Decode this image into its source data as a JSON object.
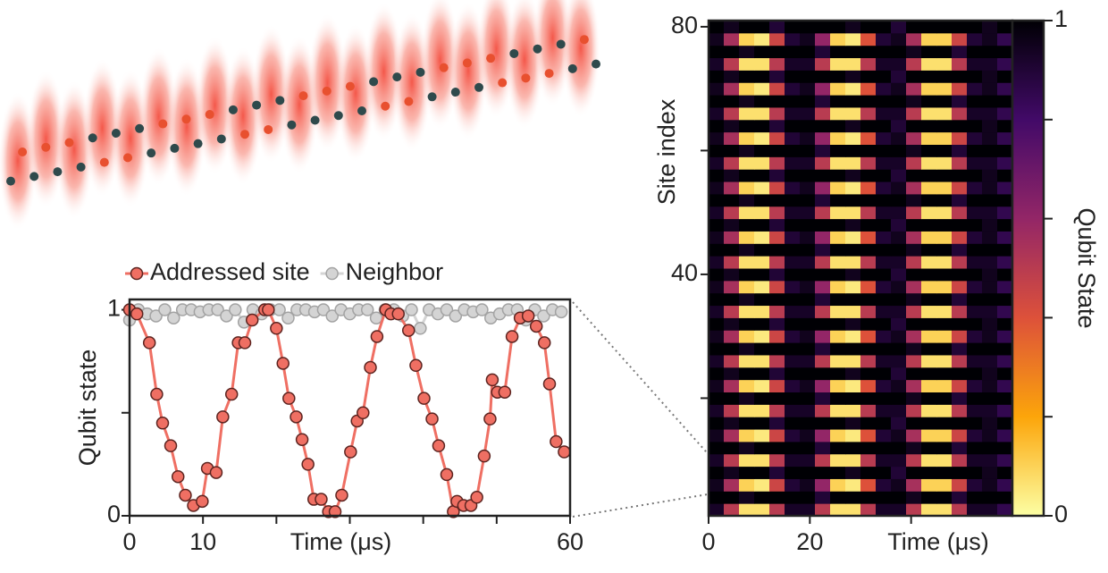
{
  "chart_data": [
    {
      "type": "line",
      "legend": "top",
      "xlabel": "Time (μs)",
      "ylabel": "Qubit state",
      "xlim": [
        0,
        60
      ],
      "ylim": [
        0,
        1.05
      ],
      "xticks": [
        0,
        10,
        60
      ],
      "xminorticks": [
        20,
        30,
        40,
        50
      ],
      "yticks": [
        0,
        1
      ],
      "yminorticks": [
        0.5
      ],
      "series": [
        {
          "name": "Addressed site",
          "color": "#ef6f63",
          "edgecolor": "#5c2420",
          "x": [
            0,
            1,
            2.7,
            3.7,
            4.5,
            5.6,
            6.6,
            7.6,
            8.7,
            9.9,
            10.6,
            11.8,
            12.7,
            13.9,
            14.8,
            15.7,
            16.7,
            18.4,
            18.9,
            20,
            20.9,
            21.7,
            22.7,
            23.5,
            24.3,
            25.1,
            26.1,
            27.1,
            28,
            28.9,
            30.1,
            31,
            31.8,
            32.8,
            33.7,
            34.9,
            35.6,
            36.6,
            38,
            39,
            40.1,
            41.2,
            42.1,
            43.2,
            44.1,
            44.6,
            45.5,
            46.5,
            47.3,
            48.3,
            49.1,
            49.4,
            50.1,
            51.1,
            52.1,
            53.2,
            54.3,
            55.4,
            56.5,
            57.2,
            58.1,
            59.2
          ],
          "values": [
            1,
            0.98,
            0.84,
            0.59,
            0.45,
            0.34,
            0.19,
            0.1,
            0.05,
            0.07,
            0.23,
            0.21,
            0.48,
            0.59,
            0.84,
            0.84,
            0.95,
            1,
            1,
            0.91,
            0.74,
            0.57,
            0.48,
            0.37,
            0.25,
            0.08,
            0.08,
            0.02,
            0.02,
            0.1,
            0.31,
            0.46,
            0.5,
            0.72,
            0.87,
            1,
            0.98,
            0.98,
            0.9,
            0.73,
            0.57,
            0.47,
            0.34,
            0.2,
            0.02,
            0.07,
            0.05,
            0.05,
            0.09,
            0.29,
            0.47,
            0.66,
            0.6,
            0.6,
            0.87,
            0.96,
            0.97,
            0.92,
            0.84,
            0.64,
            0.36,
            0.31
          ]
        },
        {
          "name": "Neighbor",
          "color": "#d4d4d4",
          "edgecolor": "#a3a3a3",
          "x": [
            0,
            1.2,
            2.4,
            3.6,
            4.8,
            6,
            7.2,
            8.4,
            9.6,
            10.8,
            12,
            13.2,
            14.4,
            15.6,
            16.8,
            18,
            19.2,
            20.4,
            21.6,
            22.8,
            24,
            25.2,
            26.4,
            27.6,
            28.8,
            30,
            31.2,
            32.4,
            33.6,
            34.8,
            36,
            37.2,
            38.4,
            39.6,
            40.8,
            42,
            43.2,
            44.4,
            45.6,
            46.8,
            48,
            49.2,
            50.4,
            51.6,
            52.8,
            54,
            55.2,
            56.4,
            57.6,
            58.8
          ],
          "values": [
            0.95,
            1,
            0.98,
            0.97,
            1,
            0.96,
            1,
            1,
            0.99,
            1,
            1,
            0.97,
            1,
            0.94,
            1,
            0.98,
            1,
            1,
            0.96,
            1,
            1,
            0.99,
            1,
            0.97,
            1,
            0.98,
            1,
            1,
            0.96,
            1,
            1,
            0.97,
            1,
            0.91,
            1,
            0.98,
            1,
            0.97,
            1,
            0.99,
            1,
            0.96,
            0.98,
            1,
            1,
            0.95,
            1,
            0.97,
            1,
            0.99
          ]
        }
      ]
    },
    {
      "type": "heatmap",
      "xlabel": "Time (μs)",
      "ylabel": "Site index",
      "xlim": [
        0,
        60
      ],
      "ylim": [
        1,
        81
      ],
      "xticks": [
        0,
        20
      ],
      "xminorticks": [
        40
      ],
      "yticks": [
        40,
        80
      ],
      "yminorticks": [
        20,
        60
      ],
      "colorscale": [
        "#fcffa4",
        "#fca50a",
        "#dd513a",
        "#932667",
        "#420a68",
        "#000004"
      ],
      "colorbar": {
        "label": "Qubit State",
        "lim": [
          0,
          1
        ],
        "ticks": [
          0,
          1
        ],
        "minorticks": [
          0.2,
          0.4,
          0.6,
          0.8
        ]
      },
      "z": [
        [
          0.93,
          0.5,
          0.07,
          0.07,
          0.5,
          0.93,
          0.93,
          0.5,
          0.07,
          0.07,
          0.5,
          0.93,
          0.93,
          0.5,
          0.07,
          0.07,
          0.5,
          0.93,
          0.93,
          0.85
        ],
        [
          1,
          1,
          0.95,
          1,
          1,
          1,
          1,
          0.9,
          1,
          1,
          1,
          1,
          1,
          0.95,
          1,
          1,
          0.9,
          1,
          1,
          1
        ],
        [
          0.95,
          0.55,
          0.1,
          0.05,
          0.45,
          0.9,
          0.95,
          0.6,
          0.1,
          0.05,
          0.4,
          0.9,
          0.95,
          0.55,
          0.1,
          0.1,
          0.45,
          0.9,
          0.95,
          0.85
        ],
        [
          1,
          0.95,
          1,
          1,
          0.9,
          1,
          1,
          1,
          1,
          0.95,
          1,
          1,
          0.9,
          1,
          1,
          1,
          1,
          1,
          0.95,
          1
        ],
        [
          0.93,
          0.5,
          0.07,
          0.07,
          0.5,
          0.93,
          0.93,
          0.5,
          0.07,
          0.07,
          0.5,
          0.93,
          0.93,
          0.5,
          0.07,
          0.07,
          0.5,
          0.93,
          0.93,
          0.85
        ],
        [
          1,
          1,
          0.95,
          1,
          1,
          1,
          1,
          0.9,
          1,
          1,
          1,
          1,
          1,
          0.95,
          1,
          1,
          0.9,
          1,
          1,
          1
        ],
        [
          0.95,
          0.55,
          0.1,
          0.05,
          0.45,
          0.9,
          0.95,
          0.6,
          0.1,
          0.05,
          0.4,
          0.9,
          0.95,
          0.55,
          0.1,
          0.1,
          0.45,
          0.9,
          0.95,
          0.85
        ],
        [
          1,
          0.95,
          1,
          1,
          0.9,
          1,
          1,
          1,
          1,
          0.95,
          1,
          1,
          0.9,
          1,
          1,
          1,
          1,
          1,
          0.95,
          1
        ],
        [
          0.93,
          0.5,
          0.07,
          0.07,
          0.5,
          0.93,
          0.93,
          0.5,
          0.07,
          0.07,
          0.5,
          0.93,
          0.93,
          0.5,
          0.07,
          0.07,
          0.5,
          0.93,
          0.93,
          0.85
        ],
        [
          1,
          1,
          0.95,
          1,
          1,
          1,
          1,
          0.9,
          1,
          1,
          1,
          1,
          1,
          0.95,
          1,
          1,
          0.9,
          1,
          1,
          1
        ],
        [
          0.95,
          0.55,
          0.1,
          0.05,
          0.45,
          0.9,
          0.95,
          0.6,
          0.1,
          0.05,
          0.4,
          0.9,
          0.95,
          0.55,
          0.1,
          0.1,
          0.45,
          0.9,
          0.95,
          0.85
        ],
        [
          1,
          0.95,
          1,
          1,
          0.9,
          1,
          1,
          1,
          1,
          0.95,
          1,
          1,
          0.9,
          1,
          1,
          1,
          1,
          1,
          0.95,
          1
        ],
        [
          0.93,
          0.5,
          0.07,
          0.07,
          0.5,
          0.93,
          0.93,
          0.5,
          0.07,
          0.07,
          0.5,
          0.93,
          0.93,
          0.5,
          0.07,
          0.07,
          0.5,
          0.93,
          0.93,
          0.85
        ],
        [
          1,
          1,
          0.95,
          1,
          1,
          1,
          1,
          0.9,
          1,
          1,
          1,
          1,
          1,
          0.95,
          1,
          1,
          0.9,
          1,
          1,
          1
        ],
        [
          0.95,
          0.55,
          0.1,
          0.05,
          0.45,
          0.9,
          0.95,
          0.6,
          0.1,
          0.05,
          0.4,
          0.9,
          0.95,
          0.55,
          0.1,
          0.1,
          0.45,
          0.9,
          0.95,
          0.85
        ],
        [
          1,
          0.95,
          1,
          1,
          0.9,
          1,
          1,
          1,
          1,
          0.95,
          1,
          1,
          0.9,
          1,
          1,
          1,
          1,
          1,
          0.95,
          1
        ],
        [
          0.93,
          0.5,
          0.07,
          0.07,
          0.5,
          0.93,
          0.93,
          0.5,
          0.07,
          0.07,
          0.5,
          0.93,
          0.93,
          0.5,
          0.07,
          0.07,
          0.5,
          0.93,
          0.93,
          0.85
        ],
        [
          1,
          1,
          0.95,
          1,
          1,
          1,
          1,
          0.9,
          1,
          1,
          1,
          1,
          1,
          0.95,
          1,
          1,
          0.9,
          1,
          1,
          1
        ],
        [
          0.95,
          0.55,
          0.1,
          0.05,
          0.45,
          0.9,
          0.95,
          0.6,
          0.1,
          0.05,
          0.4,
          0.9,
          0.95,
          0.55,
          0.1,
          0.1,
          0.45,
          0.9,
          0.95,
          0.85
        ],
        [
          1,
          0.95,
          1,
          1,
          0.9,
          1,
          1,
          1,
          1,
          0.95,
          1,
          1,
          0.9,
          1,
          1,
          1,
          1,
          1,
          0.95,
          1
        ],
        [
          0.93,
          0.5,
          0.07,
          0.07,
          0.5,
          0.93,
          0.93,
          0.5,
          0.07,
          0.07,
          0.5,
          0.93,
          0.93,
          0.5,
          0.07,
          0.07,
          0.5,
          0.93,
          0.93,
          0.85
        ],
        [
          1,
          1,
          0.95,
          1,
          1,
          1,
          1,
          0.9,
          1,
          1,
          1,
          1,
          1,
          0.95,
          1,
          1,
          0.9,
          1,
          1,
          1
        ],
        [
          0.95,
          0.55,
          0.1,
          0.05,
          0.45,
          0.9,
          0.95,
          0.6,
          0.1,
          0.05,
          0.4,
          0.9,
          0.95,
          0.55,
          0.1,
          0.1,
          0.45,
          0.9,
          0.95,
          0.85
        ],
        [
          1,
          0.95,
          1,
          1,
          0.9,
          1,
          1,
          1,
          1,
          0.95,
          1,
          1,
          0.9,
          1,
          1,
          1,
          1,
          1,
          0.95,
          1
        ],
        [
          0.93,
          0.5,
          0.07,
          0.07,
          0.5,
          0.93,
          0.93,
          0.5,
          0.07,
          0.07,
          0.5,
          0.93,
          0.93,
          0.5,
          0.07,
          0.07,
          0.5,
          0.93,
          0.93,
          0.85
        ],
        [
          1,
          1,
          0.95,
          1,
          1,
          1,
          1,
          0.9,
          1,
          1,
          1,
          1,
          1,
          0.95,
          1,
          1,
          0.9,
          1,
          1,
          1
        ],
        [
          0.95,
          0.55,
          0.1,
          0.05,
          0.45,
          0.9,
          0.95,
          0.6,
          0.1,
          0.05,
          0.4,
          0.9,
          0.95,
          0.55,
          0.1,
          0.1,
          0.45,
          0.9,
          0.95,
          0.85
        ],
        [
          1,
          0.95,
          1,
          1,
          0.9,
          1,
          1,
          1,
          1,
          0.95,
          1,
          1,
          0.9,
          1,
          1,
          1,
          1,
          1,
          0.95,
          1
        ],
        [
          0.93,
          0.5,
          0.07,
          0.07,
          0.5,
          0.93,
          0.93,
          0.5,
          0.07,
          0.07,
          0.5,
          0.93,
          0.93,
          0.5,
          0.07,
          0.07,
          0.5,
          0.93,
          0.93,
          0.85
        ],
        [
          1,
          1,
          0.95,
          1,
          1,
          1,
          1,
          0.9,
          1,
          1,
          1,
          1,
          1,
          0.95,
          1,
          1,
          0.9,
          1,
          1,
          1
        ],
        [
          0.95,
          0.55,
          0.1,
          0.05,
          0.45,
          0.9,
          0.95,
          0.6,
          0.1,
          0.05,
          0.4,
          0.9,
          0.95,
          0.55,
          0.1,
          0.1,
          0.45,
          0.9,
          0.95,
          0.85
        ],
        [
          1,
          0.95,
          1,
          1,
          0.9,
          1,
          1,
          1,
          1,
          0.95,
          1,
          1,
          0.9,
          1,
          1,
          1,
          1,
          1,
          0.95,
          1
        ],
        [
          0.93,
          0.5,
          0.07,
          0.07,
          0.5,
          0.93,
          0.93,
          0.5,
          0.07,
          0.07,
          0.5,
          0.93,
          0.93,
          0.5,
          0.07,
          0.07,
          0.5,
          0.93,
          0.93,
          0.85
        ],
        [
          1,
          1,
          0.95,
          1,
          1,
          1,
          1,
          0.9,
          1,
          1,
          1,
          1,
          1,
          0.95,
          1,
          1,
          0.9,
          1,
          1,
          1
        ],
        [
          0.95,
          0.55,
          0.1,
          0.05,
          0.45,
          0.9,
          0.95,
          0.6,
          0.1,
          0.05,
          0.4,
          0.9,
          0.95,
          0.55,
          0.1,
          0.1,
          0.45,
          0.9,
          0.95,
          0.85
        ],
        [
          1,
          0.95,
          1,
          1,
          0.9,
          1,
          1,
          1,
          1,
          0.95,
          1,
          1,
          0.9,
          1,
          1,
          1,
          1,
          1,
          0.95,
          1
        ],
        [
          0.93,
          0.5,
          0.07,
          0.07,
          0.5,
          0.93,
          0.93,
          0.5,
          0.07,
          0.07,
          0.5,
          0.93,
          0.93,
          0.5,
          0.07,
          0.07,
          0.5,
          0.93,
          0.93,
          0.85
        ],
        [
          1,
          1,
          0.95,
          1,
          1,
          1,
          1,
          0.9,
          1,
          1,
          1,
          1,
          1,
          0.95,
          1,
          1,
          0.9,
          1,
          1,
          1
        ],
        [
          0.95,
          0.55,
          0.1,
          0.05,
          0.45,
          0.9,
          0.95,
          0.6,
          0.1,
          0.05,
          0.4,
          0.9,
          0.95,
          0.55,
          0.1,
          0.1,
          0.45,
          0.9,
          0.95,
          0.85
        ],
        [
          1,
          0.95,
          1,
          1,
          0.9,
          1,
          1,
          1,
          1,
          0.95,
          1,
          1,
          0.9,
          1,
          1,
          1,
          1,
          1,
          0.95,
          1
        ]
      ]
    }
  ]
}
